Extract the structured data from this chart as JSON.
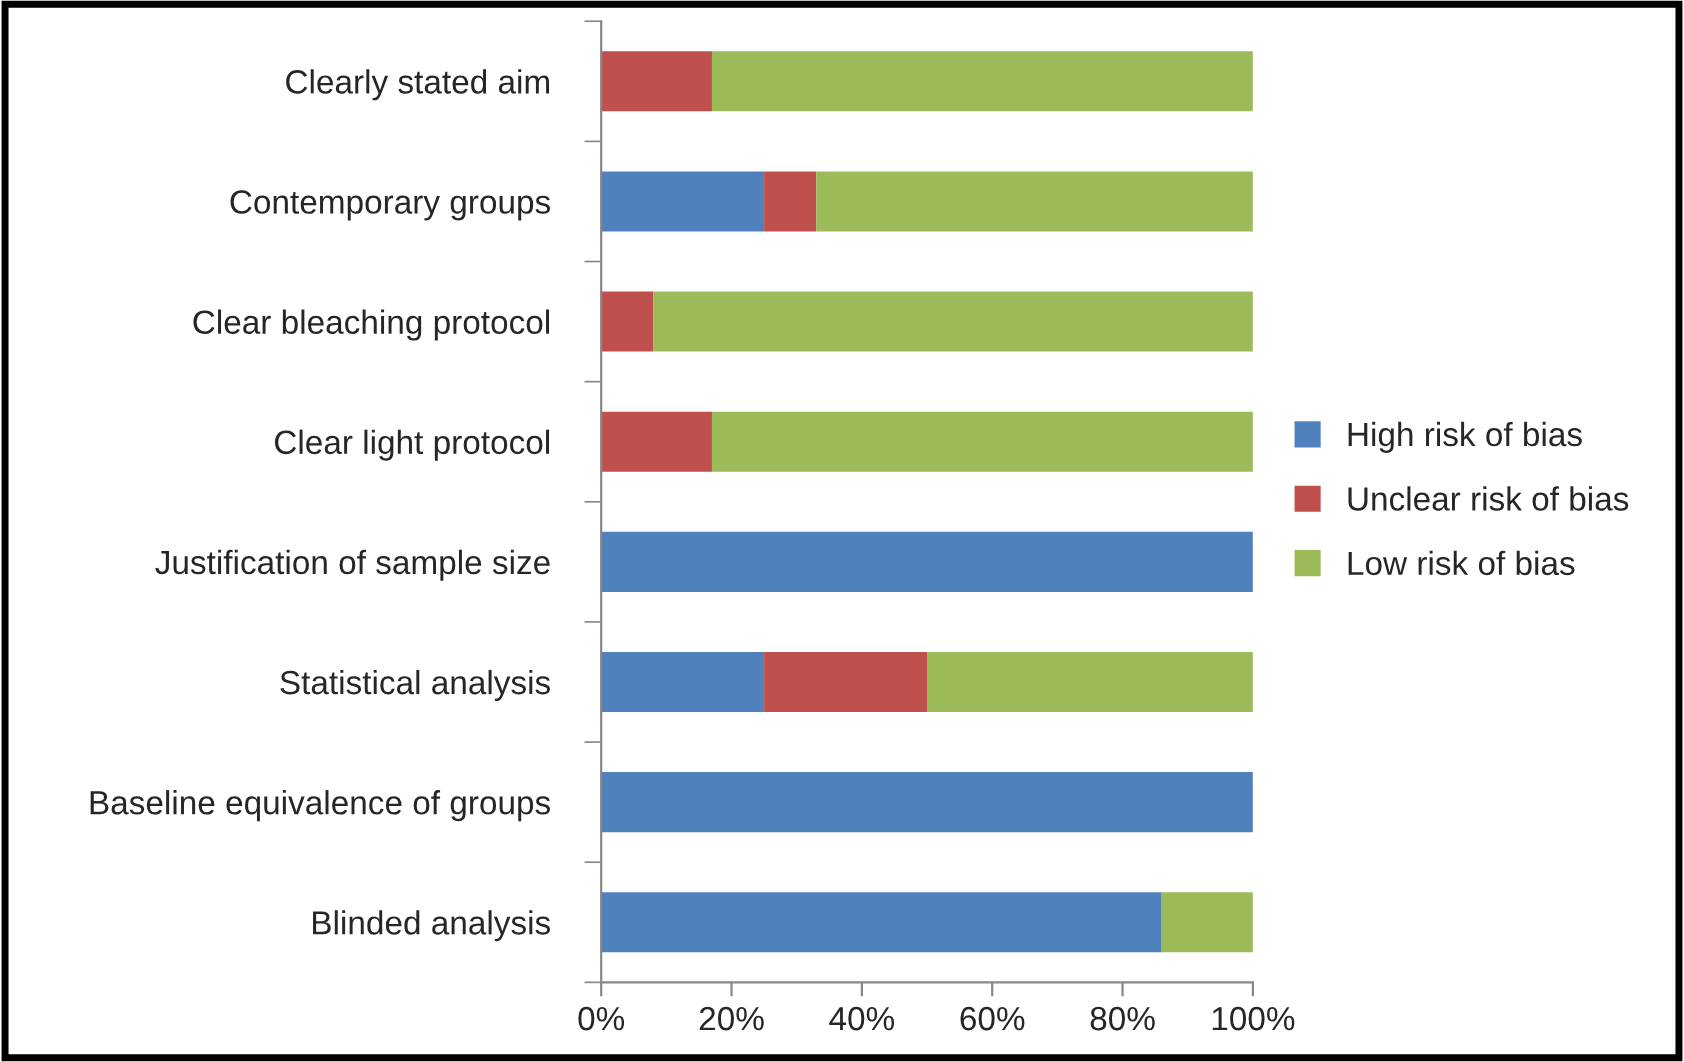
{
  "chart_data": {
    "type": "bar",
    "orientation": "horizontal",
    "stacked": true,
    "categories": [
      "Clearly stated aim",
      "Contemporary groups",
      "Clear bleaching protocol",
      "Clear light protocol",
      "Justification of sample size",
      "Statistical analysis",
      "Baseline equivalence of groups",
      "Blinded analysis"
    ],
    "series": [
      {
        "name": "High risk of bias",
        "color": "#4f81bd",
        "values": [
          0,
          25,
          0,
          0,
          100,
          25,
          100,
          86
        ]
      },
      {
        "name": "Unclear risk of bias",
        "color": "#c0504d",
        "values": [
          17,
          8,
          8,
          17,
          0,
          25,
          0,
          0
        ]
      },
      {
        "name": "Low risk of bias",
        "color": "#9bbb59",
        "values": [
          83,
          67,
          92,
          83,
          0,
          50,
          0,
          14
        ]
      }
    ],
    "xlim": [
      0,
      100
    ],
    "xticks": [
      {
        "value": 0,
        "label": "0%"
      },
      {
        "value": 20,
        "label": "20%"
      },
      {
        "value": 40,
        "label": "40%"
      },
      {
        "value": 60,
        "label": "60%"
      },
      {
        "value": 80,
        "label": "80%"
      },
      {
        "value": 100,
        "label": "100%"
      }
    ],
    "grid": false,
    "legend": "right"
  }
}
